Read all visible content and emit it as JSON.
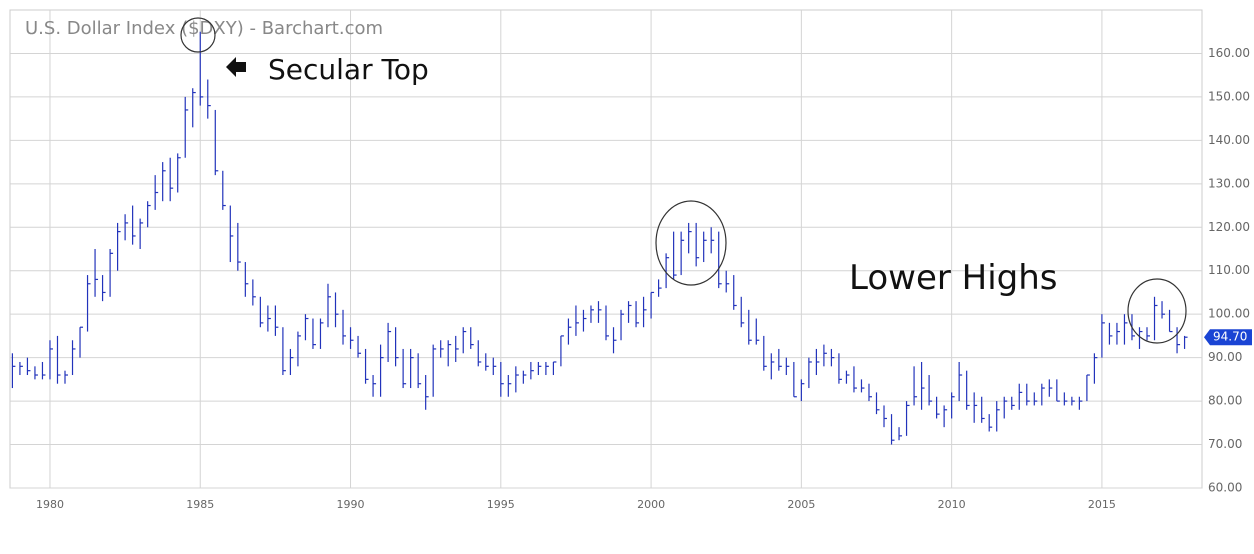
{
  "chart_data": {
    "type": "ohlc",
    "title": "U.S. Dollar Index ($DXY) - Barchart.com",
    "color": "#2233bb",
    "grid": true,
    "xlim": [
      1978.67,
      2018.33
    ],
    "ylim": [
      60,
      170
    ],
    "xticks": [
      1980,
      1985,
      1990,
      1995,
      2000,
      2005,
      2010,
      2015
    ],
    "yticks": [
      {
        "value": 60,
        "label": "60.00"
      },
      {
        "value": 70,
        "label": "70.00"
      },
      {
        "value": 80,
        "label": "80.00"
      },
      {
        "value": 90,
        "label": "90.00"
      },
      {
        "value": 100,
        "label": "100.00"
      },
      {
        "value": 110,
        "label": "110.00"
      },
      {
        "value": 120,
        "label": "120.00"
      },
      {
        "value": 130,
        "label": "130.00"
      },
      {
        "value": 140,
        "label": "140.00"
      },
      {
        "value": 150,
        "label": "150.00"
      },
      {
        "value": 160,
        "label": "160.00"
      }
    ],
    "annotations": [
      "Secular Top",
      "Lower Highs"
    ],
    "last_price": {
      "value": 94.7,
      "label": "94.70"
    },
    "x": [
      1978.75,
      1979,
      1979.25,
      1979.5,
      1979.75,
      1980,
      1980.25,
      1980.5,
      1980.75,
      1981,
      1981.25,
      1981.5,
      1981.75,
      1982,
      1982.25,
      1982.5,
      1982.75,
      1983,
      1983.25,
      1983.5,
      1983.75,
      1984,
      1984.25,
      1984.5,
      1984.75,
      1985,
      1985.25,
      1985.5,
      1985.75,
      1986,
      1986.25,
      1986.5,
      1986.75,
      1987,
      1987.25,
      1987.5,
      1987.75,
      1988,
      1988.25,
      1988.5,
      1988.75,
      1989,
      1989.25,
      1989.5,
      1989.75,
      1990,
      1990.25,
      1990.5,
      1990.75,
      1991,
      1991.25,
      1991.5,
      1991.75,
      1992,
      1992.25,
      1992.5,
      1992.75,
      1993,
      1993.25,
      1993.5,
      1993.75,
      1994,
      1994.25,
      1994.5,
      1994.75,
      1995,
      1995.25,
      1995.5,
      1995.75,
      1996,
      1996.25,
      1996.5,
      1996.75,
      1997,
      1997.25,
      1997.5,
      1997.75,
      1998,
      1998.25,
      1998.5,
      1998.75,
      1999,
      1999.25,
      1999.5,
      1999.75,
      2000,
      2000.25,
      2000.5,
      2000.75,
      2001,
      2001.25,
      2001.5,
      2001.75,
      2002,
      2002.25,
      2002.5,
      2002.75,
      2003,
      2003.25,
      2003.5,
      2003.75,
      2004,
      2004.25,
      2004.5,
      2004.75,
      2005,
      2005.25,
      2005.5,
      2005.75,
      2006,
      2006.25,
      2006.5,
      2006.75,
      2007,
      2007.25,
      2007.5,
      2007.75,
      2008,
      2008.25,
      2008.5,
      2008.75,
      2009,
      2009.25,
      2009.5,
      2009.75,
      2010,
      2010.25,
      2010.5,
      2010.75,
      2011,
      2011.25,
      2011.5,
      2011.75,
      2012,
      2012.25,
      2012.5,
      2012.75,
      2013,
      2013.25,
      2013.5,
      2013.75,
      2014,
      2014.25,
      2014.5,
      2014.75,
      2015,
      2015.25,
      2015.5,
      2015.75,
      2016,
      2016.25,
      2016.5,
      2016.75,
      2017,
      2017.25,
      2017.5,
      2017.75
    ],
    "high": [
      91,
      89,
      90,
      88,
      89,
      94,
      95,
      87,
      94,
      97,
      109,
      115,
      109,
      115,
      121,
      123,
      125,
      122,
      126,
      132,
      135,
      136,
      137,
      150,
      152,
      165,
      154,
      147,
      133,
      125,
      121,
      112,
      108,
      104,
      102,
      102,
      97,
      92,
      96,
      100,
      99,
      99,
      107,
      105,
      101,
      97,
      95,
      92,
      86,
      93,
      98,
      97,
      92,
      92,
      91,
      86,
      93,
      94,
      94,
      95,
      97,
      97,
      94,
      91,
      90,
      89,
      86,
      88,
      87,
      89,
      89,
      89,
      89,
      95,
      99,
      102,
      101,
      102,
      103,
      102,
      97,
      101,
      103,
      103,
      104,
      105,
      108,
      114,
      119,
      119,
      121,
      121,
      119,
      120,
      119,
      110,
      109,
      104,
      101,
      99,
      95,
      91,
      92,
      90,
      89,
      85,
      90,
      92,
      93,
      92,
      91,
      87,
      88,
      85,
      84,
      82,
      79,
      77,
      74,
      80,
      88,
      89,
      86,
      81,
      79,
      82,
      89,
      87,
      82,
      81,
      77,
      80,
      81,
      81,
      84,
      84,
      82,
      84,
      85,
      85,
      82,
      81,
      81,
      86,
      91,
      100,
      98,
      98,
      100,
      100,
      97,
      97,
      104,
      103,
      101,
      97,
      95
    ],
    "low": [
      83,
      86,
      86,
      85,
      85,
      85,
      84,
      84,
      86,
      90,
      96,
      104,
      103,
      104,
      110,
      117,
      116,
      115,
      120,
      124,
      126,
      126,
      128,
      136,
      143,
      148,
      145,
      132,
      124,
      112,
      110,
      104,
      102,
      97,
      96,
      95,
      86,
      86,
      88,
      94,
      92,
      92,
      97,
      97,
      93,
      92,
      90,
      84,
      81,
      81,
      89,
      88,
      83,
      83,
      83,
      78,
      81,
      90,
      88,
      89,
      91,
      92,
      88,
      87,
      86,
      81,
      81,
      82,
      84,
      85,
      86,
      86,
      86,
      88,
      93,
      95,
      96,
      98,
      98,
      94,
      91,
      94,
      98,
      97,
      97,
      99,
      104,
      106,
      108,
      109,
      114,
      111,
      112,
      114,
      106,
      105,
      101,
      97,
      93,
      93,
      87,
      85,
      87,
      86,
      81,
      80,
      83,
      86,
      88,
      88,
      84,
      84,
      82,
      82,
      80,
      77,
      74,
      70,
      71,
      72,
      79,
      78,
      79,
      76,
      74,
      76,
      80,
      78,
      75,
      75,
      73,
      73,
      76,
      78,
      78,
      79,
      79,
      79,
      81,
      80,
      79,
      79,
      78,
      80,
      84,
      90,
      93,
      93,
      93,
      94,
      92,
      94,
      94,
      99,
      96,
      91,
      92
    ],
    "close": [
      88,
      88,
      87,
      86,
      86,
      92,
      86,
      86,
      92,
      97,
      107,
      108,
      105,
      114,
      119,
      121,
      118,
      121,
      125,
      128,
      133,
      129,
      136,
      147,
      151,
      150,
      148,
      133,
      125,
      118,
      112,
      107,
      104,
      98,
      99,
      97,
      87,
      90,
      95,
      99,
      93,
      98,
      104,
      100,
      95,
      94,
      91,
      85,
      84,
      90,
      96,
      90,
      84,
      90,
      84,
      81,
      92,
      92,
      93,
      92,
      96,
      93,
      89,
      88,
      88,
      84,
      84,
      86,
      86,
      87,
      88,
      88,
      89,
      95,
      97,
      98,
      99,
      101,
      101,
      95,
      94,
      100,
      102,
      98,
      101,
      105,
      106,
      113,
      109,
      117,
      119,
      113,
      117,
      117,
      107,
      107,
      102,
      98,
      94,
      94,
      88,
      89,
      88,
      88,
      81,
      84,
      89,
      89,
      91,
      90,
      85,
      86,
      83,
      83,
      81,
      78,
      76,
      71,
      72,
      79,
      81,
      83,
      80,
      77,
      78,
      81,
      86,
      79,
      79,
      76,
      74,
      78,
      80,
      79,
      82,
      80,
      80,
      83,
      83,
      80,
      80,
      80,
      80,
      86,
      90,
      98,
      95,
      96,
      98,
      95,
      96,
      95,
      102,
      100,
      96,
      93,
      94.7
    ]
  }
}
